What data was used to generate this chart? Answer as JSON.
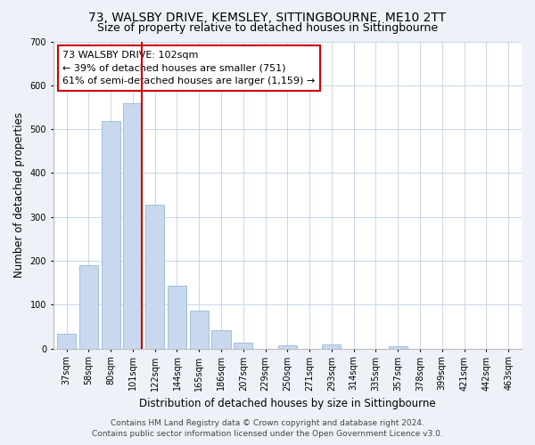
{
  "title": "73, WALSBY DRIVE, KEMSLEY, SITTINGBOURNE, ME10 2TT",
  "subtitle": "Size of property relative to detached houses in Sittingbourne",
  "xlabel": "Distribution of detached houses by size in Sittingbourne",
  "ylabel": "Number of detached properties",
  "categories": [
    "37sqm",
    "58sqm",
    "80sqm",
    "101sqm",
    "122sqm",
    "144sqm",
    "165sqm",
    "186sqm",
    "207sqm",
    "229sqm",
    "250sqm",
    "271sqm",
    "293sqm",
    "314sqm",
    "335sqm",
    "357sqm",
    "378sqm",
    "399sqm",
    "421sqm",
    "442sqm",
    "463sqm"
  ],
  "values": [
    33,
    190,
    518,
    560,
    328,
    144,
    87,
    41,
    14,
    0,
    8,
    0,
    10,
    0,
    0,
    5,
    0,
    0,
    0,
    0,
    0
  ],
  "bar_color": "#c8d8ee",
  "bar_edge_color": "#9ab8d8",
  "property_line_color": "#cc0000",
  "ylim": [
    0,
    700
  ],
  "yticks": [
    0,
    100,
    200,
    300,
    400,
    500,
    600,
    700
  ],
  "annotation_title": "73 WALSBY DRIVE: 102sqm",
  "annotation_line1": "← 39% of detached houses are smaller (751)",
  "annotation_line2": "61% of semi-detached houses are larger (1,159) →",
  "annotation_box_color": "#ffffff",
  "annotation_box_edge_color": "#cc0000",
  "footer_line1": "Contains HM Land Registry data © Crown copyright and database right 2024.",
  "footer_line2": "Contains public sector information licensed under the Open Government Licence v3.0.",
  "background_color": "#eef2f8",
  "plot_background_color": "#ffffff",
  "grid_color": "#c8d8e8",
  "title_fontsize": 10,
  "subtitle_fontsize": 9,
  "axis_label_fontsize": 8.5,
  "tick_fontsize": 7,
  "annotation_fontsize": 8,
  "footer_fontsize": 6.5
}
